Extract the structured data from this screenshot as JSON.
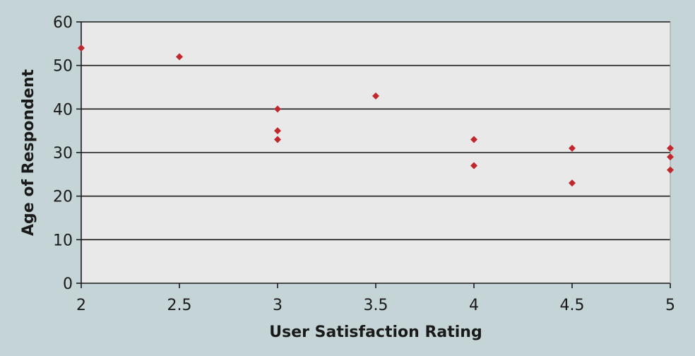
{
  "chart_data": {
    "type": "scatter",
    "title": "",
    "xlabel": "User Satisfaction Rating",
    "ylabel": "Age of Respondent",
    "xlim": [
      2,
      5
    ],
    "ylim": [
      0,
      60
    ],
    "x_ticks": [
      2,
      2.5,
      3,
      3.5,
      4,
      4.5,
      5
    ],
    "x_tick_labels": [
      "2",
      "2.5",
      "3",
      "3.5",
      "4",
      "4.5",
      "5"
    ],
    "y_ticks": [
      0,
      10,
      20,
      30,
      40,
      50,
      60
    ],
    "y_tick_labels": [
      "0",
      "10",
      "20",
      "30",
      "40",
      "50",
      "60"
    ],
    "grid": "horizontal",
    "legend": "none",
    "marker_color": "#c0282d",
    "series": [
      {
        "points": [
          {
            "x": 2,
            "y": 54
          },
          {
            "x": 2.5,
            "y": 52
          },
          {
            "x": 3,
            "y": 40
          },
          {
            "x": 3,
            "y": 35
          },
          {
            "x": 3,
            "y": 33
          },
          {
            "x": 3.5,
            "y": 43
          },
          {
            "x": 4,
            "y": 33
          },
          {
            "x": 4,
            "y": 27
          },
          {
            "x": 4.5,
            "y": 31
          },
          {
            "x": 4.5,
            "y": 23
          },
          {
            "x": 5,
            "y": 31
          },
          {
            "x": 5,
            "y": 29
          },
          {
            "x": 5,
            "y": 26
          }
        ]
      }
    ]
  }
}
